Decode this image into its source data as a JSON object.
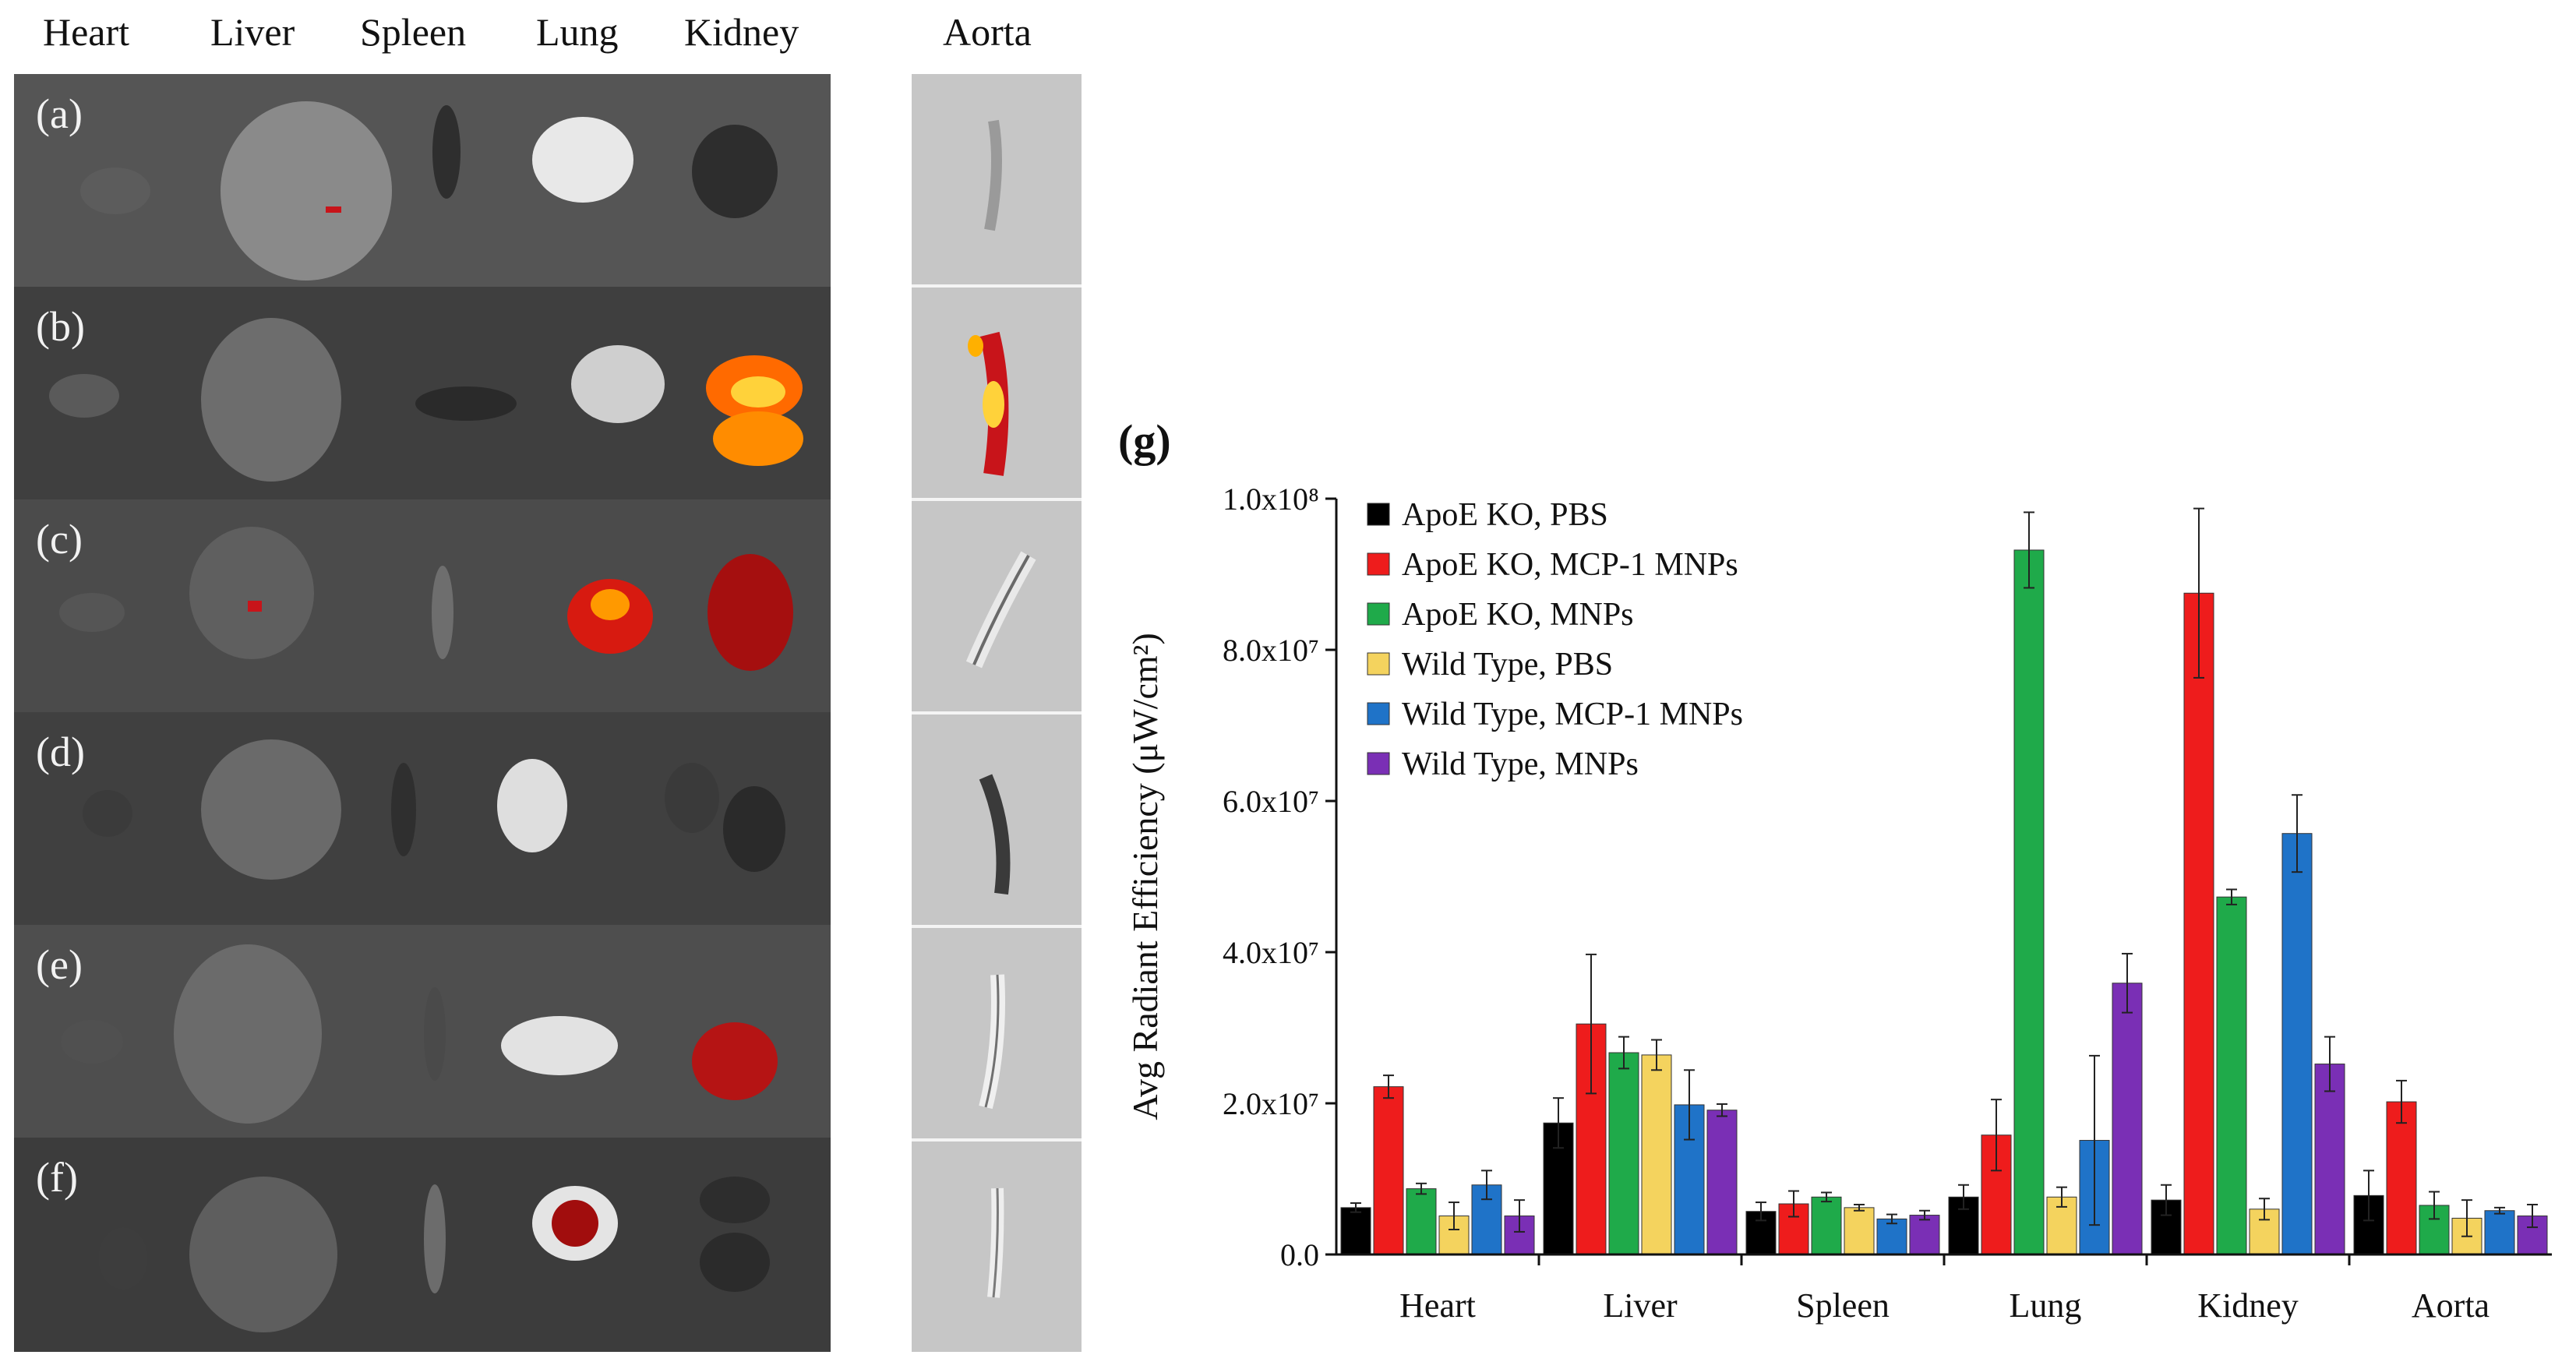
{
  "column_labels": [
    "Heart",
    "Liver",
    "Spleen",
    "Lung",
    "Kidney"
  ],
  "aorta_label": "Aorta",
  "panel_letters": [
    "(a)",
    "(b)",
    "(c)",
    "(d)",
    "(e)",
    "(f)"
  ],
  "chart_data": {
    "type": "bar",
    "panel_label": "(g)",
    "title": "",
    "xlabel": "",
    "ylabel": "Avg Radiant Efficiency (μW/cm²)",
    "ylim": [
      0,
      100000000
    ],
    "yticks": [
      {
        "value": 0,
        "label": "0.0"
      },
      {
        "value": 20000000,
        "label": "2.0x10⁷"
      },
      {
        "value": 40000000,
        "label": "4.0x10⁷"
      },
      {
        "value": 60000000,
        "label": "6.0x10⁷"
      },
      {
        "value": 80000000,
        "label": "8.0x10⁷"
      },
      {
        "value": 100000000,
        "label": "1.0x10⁸"
      }
    ],
    "categories": [
      "Heart",
      "Liver",
      "Spleen",
      "Lung",
      "Kidney",
      "Aorta"
    ],
    "legend_position": "top-left",
    "series": [
      {
        "name": "ApoE KO, PBS",
        "color": "#000000",
        "values": [
          6200000,
          17400000,
          5700000,
          7600000,
          7200000,
          7800000
        ],
        "errors": [
          600000,
          3300000,
          1200000,
          1600000,
          2000000,
          3300000
        ]
      },
      {
        "name": "ApoE KO, MCP-1 MNPs",
        "color": "#ee1c1c",
        "values": [
          22200000,
          30500000,
          6700000,
          15800000,
          87500000,
          20200000
        ],
        "errors": [
          1500000,
          9200000,
          1700000,
          4700000,
          11200000,
          2800000
        ]
      },
      {
        "name": "ApoE KO, MNPs",
        "color": "#1faa4a",
        "values": [
          8700000,
          26700000,
          7600000,
          93200000,
          47300000,
          6500000
        ],
        "errors": [
          700000,
          2100000,
          600000,
          5000000,
          1000000,
          1800000
        ]
      },
      {
        "name": "Wild Type, PBS",
        "color": "#f4d35e",
        "values": [
          5100000,
          26400000,
          6200000,
          7600000,
          6000000,
          4800000
        ],
        "errors": [
          1800000,
          2000000,
          400000,
          1300000,
          1400000,
          2400000
        ]
      },
      {
        "name": "Wild Type, MCP-1 MNPs",
        "color": "#1f73c8",
        "values": [
          9200000,
          19800000,
          4700000,
          15100000,
          55700000,
          5800000
        ],
        "errors": [
          1900000,
          4600000,
          600000,
          11200000,
          5100000,
          400000
        ]
      },
      {
        "name": "Wild Type, MNPs",
        "color": "#7a2fb5",
        "values": [
          5100000,
          19100000,
          5200000,
          35900000,
          25200000,
          5100000
        ],
        "errors": [
          2100000,
          800000,
          600000,
          3900000,
          3600000,
          1500000
        ]
      }
    ]
  }
}
